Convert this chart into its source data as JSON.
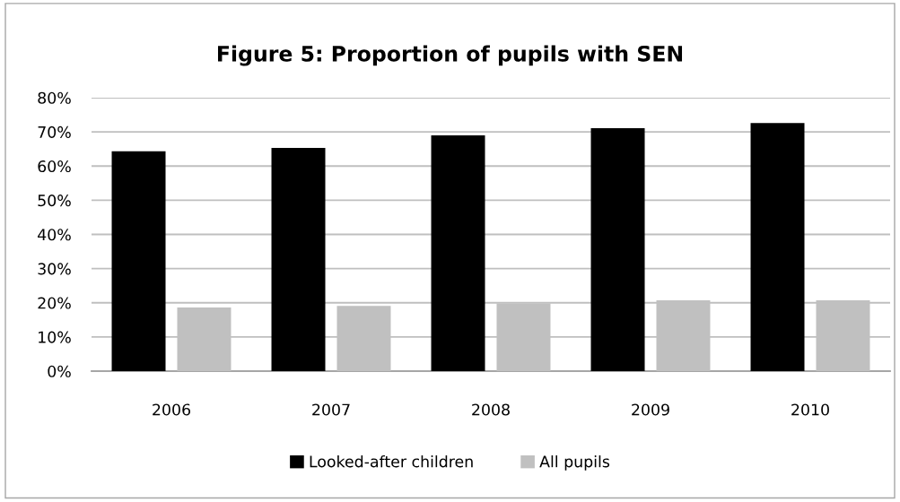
{
  "chart_data": {
    "type": "bar",
    "title": "Figure 5: Proportion of pupils with SEN",
    "categories": [
      "2006",
      "2007",
      "2008",
      "2009",
      "2010"
    ],
    "series": [
      {
        "name": "Looked-after children",
        "color": "#000000",
        "values": [
          64.3,
          65.3,
          69.0,
          71.1,
          72.6
        ]
      },
      {
        "name": "All pupils",
        "color": "#c0c0c0",
        "values": [
          18.6,
          19.1,
          19.8,
          20.7,
          20.7
        ]
      }
    ],
    "ylim": [
      0,
      80
    ],
    "yticks": [
      {
        "value": 0,
        "label": "0%"
      },
      {
        "value": 10,
        "label": "10%"
      },
      {
        "value": 20,
        "label": "20%"
      },
      {
        "value": 30,
        "label": "30%"
      },
      {
        "value": 40,
        "label": "40%"
      },
      {
        "value": 50,
        "label": "50%"
      },
      {
        "value": 60,
        "label": "60%"
      },
      {
        "value": 70,
        "label": "70%"
      },
      {
        "value": 80,
        "label": "80%"
      }
    ],
    "grid": "y",
    "legend": "bottom"
  }
}
